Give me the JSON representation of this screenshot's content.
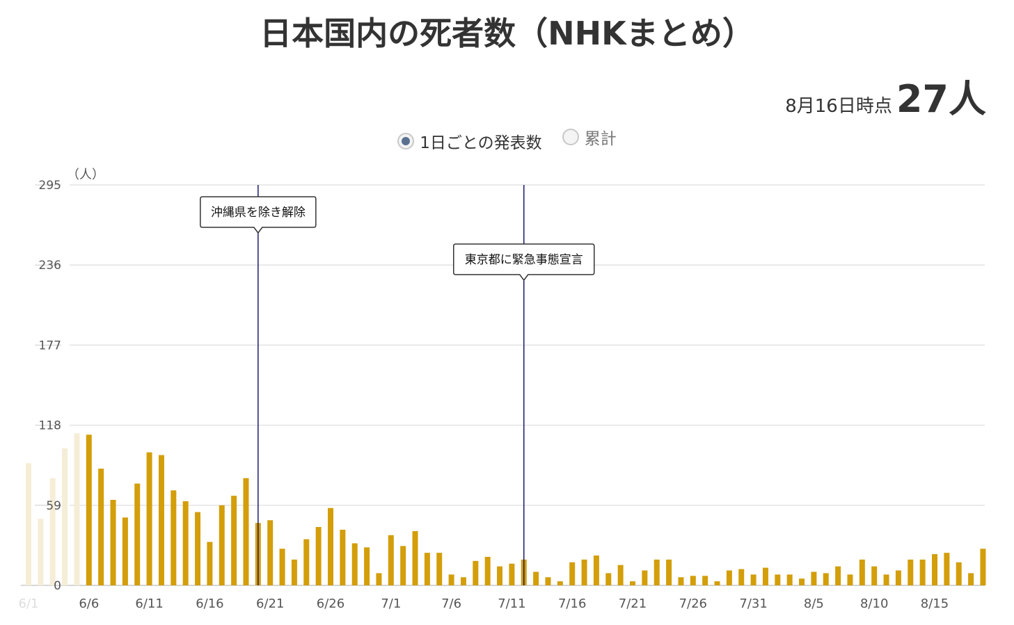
{
  "title": "日本国内の死者数（NHKまとめ）",
  "as_of": {
    "date_label": "8月16日時点",
    "count_label": "27人"
  },
  "toggle": {
    "daily_label": "1日ごとの発表数",
    "cumulative_label": "累計",
    "selected": "daily"
  },
  "colors": {
    "bar": "#d39e0a",
    "bar_faded": "#f5edd6",
    "event_line": "#1a1a6e",
    "grid": "#e3e3e3"
  },
  "chart_data": {
    "type": "bar",
    "unit_label": "（人）",
    "ylim": [
      0,
      295
    ],
    "y_ticks": [
      "0",
      "59",
      "118",
      "177",
      "236",
      "295"
    ],
    "x_tick_labels": [
      "6/1",
      "6/6",
      "6/11",
      "6/16",
      "6/21",
      "6/26",
      "7/1",
      "7/6",
      "7/11",
      "7/16",
      "7/21",
      "7/26",
      "7/31",
      "8/5",
      "8/10",
      "8/15"
    ],
    "faded_tick_labels": [
      "6/1"
    ],
    "start_date": "6/1",
    "faded_count": 5,
    "values": [
      90,
      49,
      79,
      101,
      112,
      111,
      86,
      63,
      50,
      75,
      98,
      96,
      70,
      62,
      54,
      32,
      59,
      66,
      79,
      46,
      48,
      27,
      19,
      34,
      43,
      57,
      41,
      31,
      28,
      9,
      37,
      29,
      40,
      24,
      24,
      8,
      6,
      18,
      21,
      14,
      16,
      19,
      10,
      6,
      3,
      17,
      19,
      22,
      9,
      15,
      3,
      11,
      19,
      19,
      6,
      7,
      7,
      3,
      11,
      12,
      8,
      13,
      8,
      8,
      5,
      10,
      9,
      14,
      8,
      19,
      14,
      8,
      11,
      19,
      19,
      23,
      24,
      17,
      9,
      27
    ],
    "annotations": [
      {
        "date": "6/20",
        "label": "沖縄県を除き解除"
      },
      {
        "date": "7/12",
        "label": "東京都に緊急事態宣言"
      }
    ]
  }
}
